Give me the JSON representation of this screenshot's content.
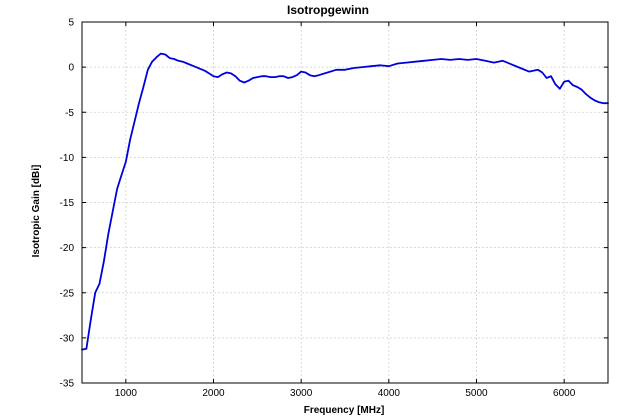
{
  "chart_data": {
    "type": "line",
    "title": "Isotropgewinn",
    "xlabel": "Frequency [MHz]",
    "ylabel": "Isotropic Gain [dBi]",
    "xlim": [
      500,
      6500
    ],
    "ylim": [
      -35,
      5
    ],
    "xticks": [
      1000,
      2000,
      3000,
      4000,
      5000,
      6000
    ],
    "yticks": [
      5,
      0,
      -5,
      -10,
      -15,
      -20,
      -25,
      -30,
      -35
    ],
    "grid": true,
    "line_color": "#0000dd",
    "series": [
      {
        "x": [
          500,
          550,
          600,
          650,
          700,
          750,
          800,
          850,
          900,
          950,
          1000,
          1050,
          1100,
          1150,
          1200,
          1250,
          1300,
          1350,
          1400,
          1450,
          1500,
          1550,
          1600,
          1650,
          1700,
          1750,
          1800,
          1850,
          1900,
          1950,
          2000,
          2050,
          2100,
          2150,
          2200,
          2250,
          2300,
          2350,
          2400,
          2450,
          2500,
          2550,
          2600,
          2650,
          2700,
          2750,
          2800,
          2850,
          2900,
          2950,
          3000,
          3050,
          3100,
          3150,
          3200,
          3300,
          3400,
          3500,
          3600,
          3700,
          3800,
          3900,
          4000,
          4100,
          4200,
          4300,
          4400,
          4500,
          4600,
          4700,
          4800,
          4900,
          5000,
          5100,
          5200,
          5300,
          5400,
          5500,
          5600,
          5700,
          5750,
          5800,
          5850,
          5900,
          5950,
          6000,
          6050,
          6100,
          6150,
          6200,
          6250,
          6300,
          6350,
          6400,
          6450,
          6500
        ],
        "y": [
          -31.3,
          -31.2,
          -28.0,
          -25.0,
          -24.0,
          -21.5,
          -18.5,
          -16.0,
          -13.5,
          -12.0,
          -10.5,
          -8.0,
          -6.0,
          -4.0,
          -2.2,
          -0.3,
          0.6,
          1.1,
          1.5,
          1.4,
          1.0,
          0.9,
          0.7,
          0.6,
          0.4,
          0.2,
          0.0,
          -0.2,
          -0.4,
          -0.7,
          -1.0,
          -1.1,
          -0.8,
          -0.6,
          -0.7,
          -1.0,
          -1.5,
          -1.7,
          -1.5,
          -1.2,
          -1.1,
          -1.0,
          -1.0,
          -1.1,
          -1.1,
          -1.0,
          -1.0,
          -1.2,
          -1.1,
          -0.9,
          -0.5,
          -0.6,
          -0.9,
          -1.0,
          -0.9,
          -0.6,
          -0.3,
          -0.3,
          -0.1,
          0.0,
          0.1,
          0.2,
          0.1,
          0.4,
          0.5,
          0.6,
          0.7,
          0.8,
          0.9,
          0.8,
          0.9,
          0.8,
          0.9,
          0.7,
          0.5,
          0.7,
          0.3,
          -0.1,
          -0.5,
          -0.3,
          -0.6,
          -1.2,
          -1.0,
          -1.9,
          -2.4,
          -1.6,
          -1.5,
          -2.0,
          -2.2,
          -2.5,
          -3.0,
          -3.4,
          -3.7,
          -3.9,
          -4.0,
          -4.0
        ]
      }
    ]
  }
}
